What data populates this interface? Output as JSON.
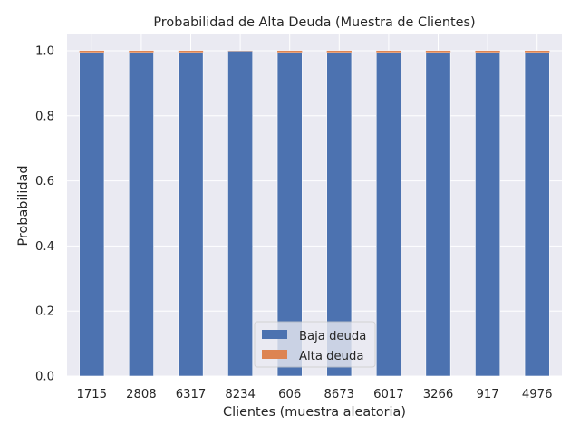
{
  "chart_data": {
    "type": "bar",
    "stacked": true,
    "title": "Probabilidad de Alta Deuda (Muestra de Clientes)",
    "xlabel": "Clientes (muestra aleatoria)",
    "ylabel": "Probabilidad",
    "categories": [
      "1715",
      "2808",
      "6317",
      "8234",
      "606",
      "8673",
      "6017",
      "3266",
      "917",
      "4976"
    ],
    "series": [
      {
        "name": "Baja deuda",
        "color": "#4c72b0",
        "values": [
          0.995,
          0.995,
          0.995,
          0.999,
          0.995,
          0.995,
          0.995,
          0.995,
          0.995,
          0.995
        ]
      },
      {
        "name": "Alta deuda",
        "color": "#dd8452",
        "values": [
          0.005,
          0.005,
          0.005,
          0.001,
          0.005,
          0.005,
          0.005,
          0.005,
          0.005,
          0.005
        ]
      }
    ],
    "ylim": [
      0,
      1.05
    ],
    "yticks": [
      "0.0",
      "0.2",
      "0.4",
      "0.6",
      "0.8",
      "1.0"
    ],
    "grid": true,
    "legend_position": "lower-center",
    "background": "#eaeaf2"
  }
}
